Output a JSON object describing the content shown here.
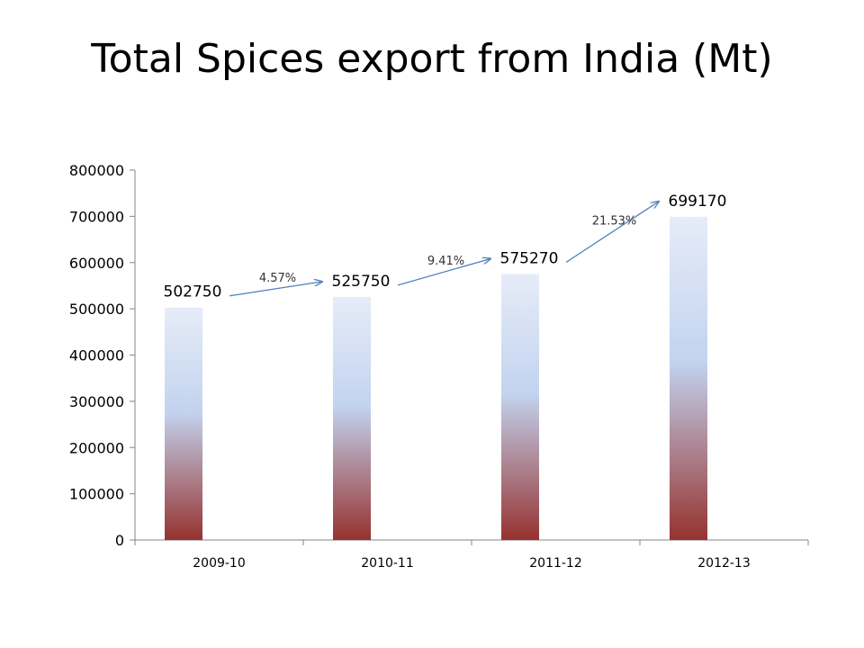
{
  "chart_data": {
    "type": "bar",
    "title": "Total Spices export from India (Mt)",
    "categories": [
      "2009-10",
      "2010-11",
      "2011-12",
      "2012-13"
    ],
    "values": [
      502750,
      525750,
      575270,
      699170
    ],
    "data_labels": [
      "502750",
      "525750",
      "575270",
      "699170"
    ],
    "ylim": [
      0,
      800000
    ],
    "yticks": [
      0,
      100000,
      200000,
      300000,
      400000,
      500000,
      600000,
      700000,
      800000
    ],
    "ytick_labels": [
      "0",
      "100000",
      "200000",
      "300000",
      "400000",
      "500000",
      "600000",
      "700000",
      "800000"
    ],
    "growth_annotations": [
      "4.57%",
      "9.41%",
      "21.53%"
    ],
    "grid": false,
    "legend": "none",
    "colors": {
      "bar_top": "#e6ecf8",
      "bar_mid": "#c2d3ef",
      "bar_bottom": "#963230",
      "arrow": "#4f81bd",
      "axis": "#868686"
    }
  }
}
